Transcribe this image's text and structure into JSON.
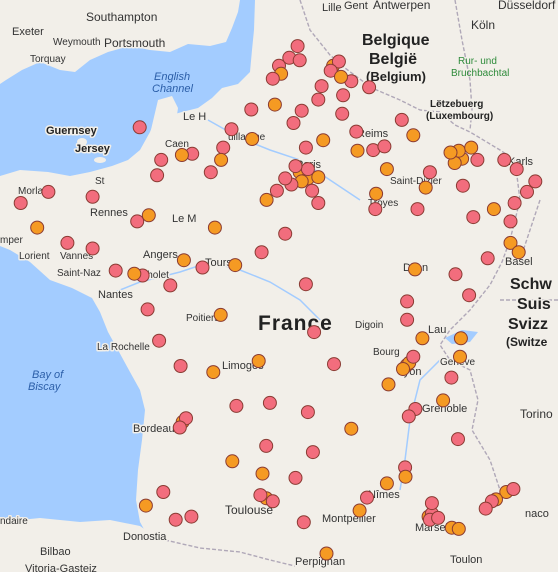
{
  "map": {
    "colors": {
      "sea": "#a3ccff",
      "land": "#f2efe9",
      "border": "#b0a8b8",
      "marker_red": "#f26d7d",
      "marker_orange": "#f59a23",
      "marker_stroke": "#8a3b33"
    },
    "labels": {
      "southampton": "Southampton",
      "exeter": "Exeter",
      "weymouth": "Weymouth",
      "portsmouth": "Portsmouth",
      "torquay": "Torquay",
      "english_channel_1": "English",
      "english_channel_2": "Channel",
      "guernsey": "Guernsey",
      "jersey": "Jersey",
      "morlaix": "Morlaix",
      "rennes": "Rennes",
      "lorient": "Lorient",
      "vannes": "Vannes",
      "saint_nazaire": "Saint-Naz",
      "nantes": "Nantes",
      "cholet": "Cholet",
      "angers": "Angers",
      "tours": "Tours",
      "le_mans": "Le M",
      "poitiers": "Poitiers",
      "la_rochelle": "La Rochelle",
      "bay_of_biscay_1": "Bay of",
      "bay_of_biscay_2": "Biscay",
      "bordeaux": "Bordeaux",
      "limoges": "Limoges",
      "toulouse": "Toulouse",
      "montpellier": "Montpellier",
      "nimes": "Nîmes",
      "marseille": "Marseille",
      "toulon": "Toulon",
      "monaco": "naco",
      "perpignan": "Perpignan",
      "donostia": "Donostia",
      "bilbao": "Bilbao",
      "vitoria": "Vitoria-Gasteiz",
      "france": "France",
      "dijon": "Dijon",
      "digoin": "Digoin",
      "bourg": "Bourg",
      "lyon": "Lyon",
      "grenoble": "Grenoble",
      "geneve": "Genève",
      "lausanne": "Lau",
      "saint_dizier": "Saint-Dizier",
      "troyes": "Troyes",
      "lille": "Lille",
      "gent": "Gent",
      "antwerpen": "Antwerpen",
      "belgique": "Belgique",
      "belgie": "België",
      "belgium": "(Belgium)",
      "letzebuerg": "Lëtzebuerg",
      "luxembourg": "(Luxembourg)",
      "koln": "Köln",
      "dusseldorf": "Düsseldorf",
      "rur_1": "Rur- und",
      "rur_2": "Bruchbachtal",
      "karlsruhe": "Karls",
      "basel": "Basel",
      "schweiz": "Schw",
      "suisse": "Suis",
      "svizzera": "Svizz",
      "switzerland": "(Switze",
      "torino": "Torino",
      "caen": "Caen",
      "le_havre": "Le H",
      "reims": "Reims",
      "paris": "Paris",
      "saint_malo": "St",
      "guillaume": "uillaume",
      "mper": "mper",
      "ndaire": "ndaire"
    },
    "markers": [
      {
        "lat": 50.63,
        "lon": 1.75,
        "c": "r"
      },
      {
        "lat": 50.5,
        "lon": 1.8,
        "c": "o"
      },
      {
        "lat": 50.76,
        "lon": 2.0,
        "c": "r"
      },
      {
        "lat": 50.95,
        "lon": 2.2,
        "c": "r"
      },
      {
        "lat": 50.72,
        "lon": 2.25,
        "c": "r"
      },
      {
        "lat": 50.42,
        "lon": 1.6,
        "c": "r"
      },
      {
        "lat": 50.3,
        "lon": 2.78,
        "c": "r"
      },
      {
        "lat": 50.63,
        "lon": 3.06,
        "c": "o"
      },
      {
        "lat": 50.7,
        "lon": 3.2,
        "c": "r"
      },
      {
        "lat": 50.55,
        "lon": 3.0,
        "c": "r"
      },
      {
        "lat": 50.38,
        "lon": 3.5,
        "c": "r"
      },
      {
        "lat": 50.28,
        "lon": 3.93,
        "c": "r"
      },
      {
        "lat": 50.45,
        "lon": 3.25,
        "c": "o"
      },
      {
        "lat": 50.15,
        "lon": 3.3,
        "c": "r"
      },
      {
        "lat": 50.08,
        "lon": 2.7,
        "c": "r"
      },
      {
        "lat": 49.9,
        "lon": 2.3,
        "c": "r"
      },
      {
        "lat": 49.85,
        "lon": 3.28,
        "c": "r"
      },
      {
        "lat": 49.92,
        "lon": 1.08,
        "c": "r"
      },
      {
        "lat": 50.0,
        "lon": 1.65,
        "c": "o"
      },
      {
        "lat": 49.7,
        "lon": 2.1,
        "c": "r"
      },
      {
        "lat": 49.56,
        "lon": 3.62,
        "c": "r"
      },
      {
        "lat": 49.6,
        "lon": 0.6,
        "c": "r"
      },
      {
        "lat": 49.44,
        "lon": 1.1,
        "c": "o"
      },
      {
        "lat": 49.3,
        "lon": 0.4,
        "c": "r"
      },
      {
        "lat": 49.2,
        "lon": -0.35,
        "c": "r"
      },
      {
        "lat": 49.18,
        "lon": -0.6,
        "c": "o"
      },
      {
        "lat": 49.1,
        "lon": -1.1,
        "c": "r"
      },
      {
        "lat": 49.63,
        "lon": -1.62,
        "c": "r"
      },
      {
        "lat": 49.1,
        "lon": 0.35,
        "c": "o"
      },
      {
        "lat": 48.9,
        "lon": 0.1,
        "c": "r"
      },
      {
        "lat": 48.85,
        "lon": -1.2,
        "c": "r"
      },
      {
        "lat": 49.42,
        "lon": 2.82,
        "c": "o"
      },
      {
        "lat": 49.3,
        "lon": 2.4,
        "c": "r"
      },
      {
        "lat": 49.26,
        "lon": 4.03,
        "c": "r"
      },
      {
        "lat": 49.25,
        "lon": 3.65,
        "c": "o"
      },
      {
        "lat": 49.32,
        "lon": 4.3,
        "c": "r"
      },
      {
        "lat": 49.75,
        "lon": 4.72,
        "c": "r"
      },
      {
        "lat": 49.5,
        "lon": 5.0,
        "c": "o"
      },
      {
        "lat": 49.12,
        "lon": 6.18,
        "c": "o"
      },
      {
        "lat": 49.25,
        "lon": 6.1,
        "c": "o"
      },
      {
        "lat": 49.3,
        "lon": 6.4,
        "c": "o"
      },
      {
        "lat": 49.1,
        "lon": 6.55,
        "c": "r"
      },
      {
        "lat": 49.05,
        "lon": 6.0,
        "c": "o"
      },
      {
        "lat": 49.22,
        "lon": 5.9,
        "c": "o"
      },
      {
        "lat": 49.1,
        "lon": 7.2,
        "c": "r"
      },
      {
        "lat": 48.95,
        "lon": 7.5,
        "c": "r"
      },
      {
        "lat": 48.68,
        "lon": 6.2,
        "c": "r"
      },
      {
        "lat": 48.58,
        "lon": 7.75,
        "c": "r"
      },
      {
        "lat": 48.4,
        "lon": 7.45,
        "c": "r"
      },
      {
        "lat": 48.75,
        "lon": 7.95,
        "c": "r"
      },
      {
        "lat": 48.1,
        "lon": 7.35,
        "c": "r"
      },
      {
        "lat": 47.75,
        "lon": 7.35,
        "c": "o"
      },
      {
        "lat": 47.6,
        "lon": 7.55,
        "c": "o"
      },
      {
        "lat": 48.3,
        "lon": 6.95,
        "c": "o"
      },
      {
        "lat": 48.17,
        "lon": 6.45,
        "c": "r"
      },
      {
        "lat": 48.65,
        "lon": 5.3,
        "c": "o"
      },
      {
        "lat": 48.9,
        "lon": 5.4,
        "c": "r"
      },
      {
        "lat": 48.3,
        "lon": 5.1,
        "c": "r"
      },
      {
        "lat": 48.55,
        "lon": 4.1,
        "c": "o"
      },
      {
        "lat": 48.3,
        "lon": 4.08,
        "c": "r"
      },
      {
        "lat": 48.95,
        "lon": 4.36,
        "c": "o"
      },
      {
        "lat": 48.85,
        "lon": 2.35,
        "c": "o"
      },
      {
        "lat": 48.9,
        "lon": 2.25,
        "c": "o"
      },
      {
        "lat": 48.8,
        "lon": 2.45,
        "c": "o"
      },
      {
        "lat": 48.75,
        "lon": 2.3,
        "c": "o"
      },
      {
        "lat": 48.95,
        "lon": 2.45,
        "c": "r"
      },
      {
        "lat": 48.7,
        "lon": 2.05,
        "c": "r"
      },
      {
        "lat": 48.6,
        "lon": 2.55,
        "c": "r"
      },
      {
        "lat": 48.82,
        "lon": 2.7,
        "c": "o"
      },
      {
        "lat": 49.0,
        "lon": 2.15,
        "c": "r"
      },
      {
        "lat": 48.4,
        "lon": 2.7,
        "c": "r"
      },
      {
        "lat": 48.6,
        "lon": 1.7,
        "c": "r"
      },
      {
        "lat": 48.45,
        "lon": 1.45,
        "c": "o"
      },
      {
        "lat": 48.8,
        "lon": 1.9,
        "c": "r"
      },
      {
        "lat": 48.0,
        "lon": 0.2,
        "c": "o"
      },
      {
        "lat": 48.1,
        "lon": -1.68,
        "c": "r"
      },
      {
        "lat": 48.2,
        "lon": -1.4,
        "c": "o"
      },
      {
        "lat": 48.5,
        "lon": -2.76,
        "c": "r"
      },
      {
        "lat": 48.58,
        "lon": -3.83,
        "c": "r"
      },
      {
        "lat": 48.4,
        "lon": -4.5,
        "c": "r"
      },
      {
        "lat": 48.0,
        "lon": -4.1,
        "c": "o"
      },
      {
        "lat": 48.45,
        "lon": -4.9,
        "c": "o"
      },
      {
        "lat": 47.75,
        "lon": -3.37,
        "c": "r"
      },
      {
        "lat": 47.66,
        "lon": -2.76,
        "c": "r"
      },
      {
        "lat": 47.3,
        "lon": -2.2,
        "c": "r"
      },
      {
        "lat": 47.22,
        "lon": -1.55,
        "c": "r"
      },
      {
        "lat": 47.25,
        "lon": -1.75,
        "c": "o"
      },
      {
        "lat": 47.06,
        "lon": -0.88,
        "c": "r"
      },
      {
        "lat": 47.47,
        "lon": -0.55,
        "c": "o"
      },
      {
        "lat": 47.35,
        "lon": -0.1,
        "c": "r"
      },
      {
        "lat": 47.39,
        "lon": 0.69,
        "c": "o"
      },
      {
        "lat": 47.6,
        "lon": 1.33,
        "c": "r"
      },
      {
        "lat": 47.9,
        "lon": 1.9,
        "c": "r"
      },
      {
        "lat": 47.08,
        "lon": 2.4,
        "c": "r"
      },
      {
        "lat": 46.58,
        "lon": 0.34,
        "c": "o"
      },
      {
        "lat": 46.67,
        "lon": -1.43,
        "c": "r"
      },
      {
        "lat": 46.16,
        "lon": -1.15,
        "c": "r"
      },
      {
        "lat": 45.75,
        "lon": -0.63,
        "c": "r"
      },
      {
        "lat": 45.65,
        "lon": 0.16,
        "c": "o"
      },
      {
        "lat": 45.83,
        "lon": 1.26,
        "c": "o"
      },
      {
        "lat": 46.3,
        "lon": 2.6,
        "c": "r"
      },
      {
        "lat": 45.78,
        "lon": 3.08,
        "c": "r"
      },
      {
        "lat": 45.45,
        "lon": 4.4,
        "c": "o"
      },
      {
        "lat": 45.76,
        "lon": 4.84,
        "c": "o"
      },
      {
        "lat": 45.8,
        "lon": 4.9,
        "c": "o"
      },
      {
        "lat": 45.7,
        "lon": 4.75,
        "c": "o"
      },
      {
        "lat": 45.9,
        "lon": 5.0,
        "c": "r"
      },
      {
        "lat": 46.2,
        "lon": 5.22,
        "c": "o"
      },
      {
        "lat": 46.5,
        "lon": 4.85,
        "c": "r"
      },
      {
        "lat": 46.8,
        "lon": 4.85,
        "c": "r"
      },
      {
        "lat": 47.32,
        "lon": 5.04,
        "c": "o"
      },
      {
        "lat": 47.24,
        "lon": 6.02,
        "c": "r"
      },
      {
        "lat": 47.5,
        "lon": 6.8,
        "c": "r"
      },
      {
        "lat": 46.9,
        "lon": 6.35,
        "c": "r"
      },
      {
        "lat": 46.2,
        "lon": 6.15,
        "c": "o"
      },
      {
        "lat": 45.9,
        "lon": 6.13,
        "c": "o"
      },
      {
        "lat": 45.56,
        "lon": 5.92,
        "c": "r"
      },
      {
        "lat": 45.19,
        "lon": 5.72,
        "c": "o"
      },
      {
        "lat": 45.05,
        "lon": 5.05,
        "c": "r"
      },
      {
        "lat": 44.93,
        "lon": 4.89,
        "c": "r"
      },
      {
        "lat": 44.56,
        "lon": 6.08,
        "c": "r"
      },
      {
        "lat": 44.1,
        "lon": 4.8,
        "c": "r"
      },
      {
        "lat": 43.95,
        "lon": 4.81,
        "c": "o"
      },
      {
        "lat": 43.84,
        "lon": 4.36,
        "c": "o"
      },
      {
        "lat": 43.61,
        "lon": 3.88,
        "c": "r"
      },
      {
        "lat": 43.4,
        "lon": 3.7,
        "c": "o"
      },
      {
        "lat": 43.3,
        "lon": 5.37,
        "c": "o"
      },
      {
        "lat": 43.35,
        "lon": 5.45,
        "c": "r"
      },
      {
        "lat": 43.25,
        "lon": 5.4,
        "c": "r"
      },
      {
        "lat": 43.28,
        "lon": 5.6,
        "c": "r"
      },
      {
        "lat": 43.12,
        "lon": 5.93,
        "c": "o"
      },
      {
        "lat": 43.52,
        "lon": 5.45,
        "c": "r"
      },
      {
        "lat": 43.7,
        "lon": 7.25,
        "c": "o"
      },
      {
        "lat": 43.58,
        "lon": 7.0,
        "c": "o"
      },
      {
        "lat": 43.75,
        "lon": 7.42,
        "c": "r"
      },
      {
        "lat": 43.55,
        "lon": 6.9,
        "c": "r"
      },
      {
        "lat": 43.43,
        "lon": 6.75,
        "c": "r"
      },
      {
        "lat": 43.6,
        "lon": 1.44,
        "c": "o"
      },
      {
        "lat": 43.65,
        "lon": 1.3,
        "c": "r"
      },
      {
        "lat": 43.55,
        "lon": 1.6,
        "c": "r"
      },
      {
        "lat": 43.93,
        "lon": 2.15,
        "c": "r"
      },
      {
        "lat": 43.21,
        "lon": 2.35,
        "c": "r"
      },
      {
        "lat": 42.7,
        "lon": 2.9,
        "c": "o"
      },
      {
        "lat": 43.3,
        "lon": -0.37,
        "c": "r"
      },
      {
        "lat": 43.48,
        "lon": -1.47,
        "c": "o"
      },
      {
        "lat": 43.25,
        "lon": -0.75,
        "c": "r"
      },
      {
        "lat": 43.7,
        "lon": -1.05,
        "c": "r"
      },
      {
        "lat": 44.84,
        "lon": -0.58,
        "c": "o"
      },
      {
        "lat": 44.9,
        "lon": -0.5,
        "c": "r"
      },
      {
        "lat": 44.75,
        "lon": -0.65,
        "c": "r"
      },
      {
        "lat": 44.2,
        "lon": 0.62,
        "c": "o"
      },
      {
        "lat": 44.45,
        "lon": 1.44,
        "c": "r"
      },
      {
        "lat": 44.35,
        "lon": 2.57,
        "c": "r"
      },
      {
        "lat": 44.0,
        "lon": 1.35,
        "c": "o"
      },
      {
        "lat": 45.15,
        "lon": 1.53,
        "c": "r"
      },
      {
        "lat": 45.0,
        "lon": 2.45,
        "c": "r"
      },
      {
        "lat": 45.1,
        "lon": 0.72,
        "c": "r"
      },
      {
        "lat": 44.73,
        "lon": 3.5,
        "c": "o"
      },
      {
        "lat": 43.1,
        "lon": 6.1,
        "c": "o"
      }
    ]
  }
}
